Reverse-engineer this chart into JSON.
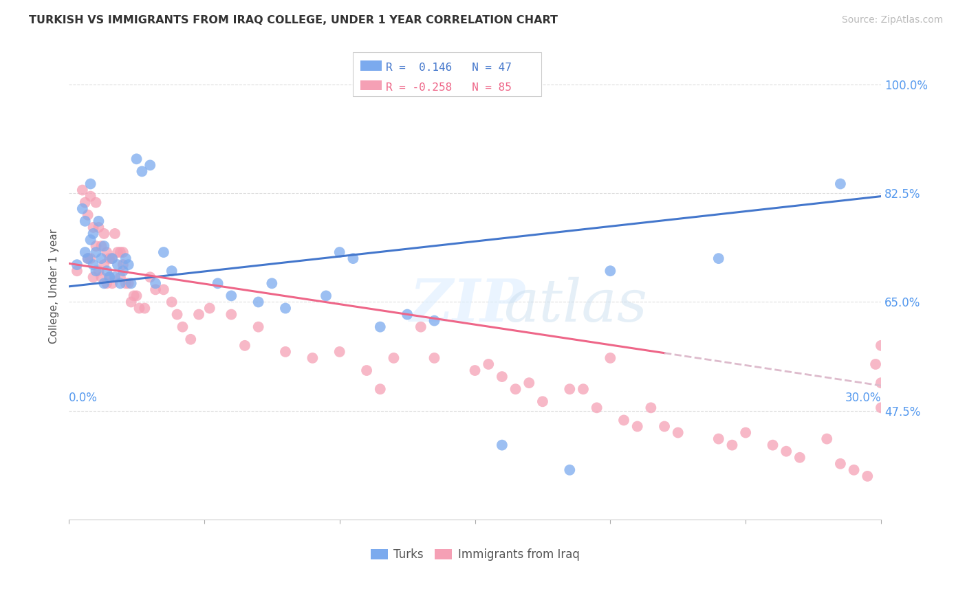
{
  "title": "TURKISH VS IMMIGRANTS FROM IRAQ COLLEGE, UNDER 1 YEAR CORRELATION CHART",
  "source": "Source: ZipAtlas.com",
  "ylabel": "College, Under 1 year",
  "yticks_labels": [
    "100.0%",
    "82.5%",
    "65.0%",
    "47.5%"
  ],
  "ytick_vals": [
    1.0,
    0.825,
    0.65,
    0.475
  ],
  "xlim": [
    0.0,
    0.3
  ],
  "ylim": [
    0.3,
    1.05
  ],
  "turks_R": 0.146,
  "turks_N": 47,
  "iraq_R": -0.258,
  "iraq_N": 85,
  "turks_color": "#7baaee",
  "iraq_color": "#f5a0b5",
  "turks_line_color": "#4477cc",
  "iraq_line_color": "#ee6688",
  "iraq_dash_color": "#ddbbcc",
  "legend_text_blue": "R =  0.146   N = 47",
  "legend_text_pink": "R = -0.258   N = 85",
  "bottom_legend_left": "Turks",
  "bottom_legend_right": "Immigrants from Iraq",
  "turks_scatter_x": [
    0.003,
    0.005,
    0.006,
    0.006,
    0.007,
    0.008,
    0.008,
    0.009,
    0.009,
    0.01,
    0.01,
    0.011,
    0.012,
    0.013,
    0.013,
    0.014,
    0.015,
    0.016,
    0.017,
    0.018,
    0.019,
    0.02,
    0.021,
    0.022,
    0.023,
    0.025,
    0.027,
    0.03,
    0.032,
    0.035,
    0.038,
    0.055,
    0.06,
    0.07,
    0.075,
    0.08,
    0.095,
    0.1,
    0.105,
    0.115,
    0.125,
    0.135,
    0.16,
    0.185,
    0.2,
    0.24,
    0.285
  ],
  "turks_scatter_y": [
    0.71,
    0.8,
    0.73,
    0.78,
    0.72,
    0.75,
    0.84,
    0.71,
    0.76,
    0.7,
    0.73,
    0.78,
    0.72,
    0.74,
    0.68,
    0.7,
    0.69,
    0.72,
    0.69,
    0.71,
    0.68,
    0.7,
    0.72,
    0.71,
    0.68,
    0.88,
    0.86,
    0.87,
    0.68,
    0.73,
    0.7,
    0.68,
    0.66,
    0.65,
    0.68,
    0.64,
    0.66,
    0.73,
    0.72,
    0.61,
    0.63,
    0.62,
    0.42,
    0.38,
    0.7,
    0.72,
    0.84
  ],
  "iraq_scatter_x": [
    0.003,
    0.005,
    0.006,
    0.007,
    0.007,
    0.008,
    0.008,
    0.009,
    0.009,
    0.01,
    0.01,
    0.011,
    0.011,
    0.012,
    0.012,
    0.013,
    0.013,
    0.014,
    0.014,
    0.015,
    0.015,
    0.016,
    0.016,
    0.017,
    0.018,
    0.019,
    0.019,
    0.02,
    0.02,
    0.021,
    0.022,
    0.023,
    0.024,
    0.025,
    0.026,
    0.028,
    0.03,
    0.032,
    0.035,
    0.038,
    0.04,
    0.042,
    0.045,
    0.048,
    0.052,
    0.06,
    0.065,
    0.07,
    0.08,
    0.09,
    0.1,
    0.11,
    0.115,
    0.12,
    0.13,
    0.135,
    0.15,
    0.155,
    0.16,
    0.165,
    0.17,
    0.175,
    0.185,
    0.19,
    0.195,
    0.2,
    0.205,
    0.21,
    0.215,
    0.22,
    0.225,
    0.24,
    0.245,
    0.25,
    0.26,
    0.265,
    0.27,
    0.28,
    0.285,
    0.29,
    0.295,
    0.298,
    0.3,
    0.3,
    0.3
  ],
  "iraq_scatter_y": [
    0.7,
    0.83,
    0.81,
    0.79,
    0.72,
    0.72,
    0.82,
    0.69,
    0.77,
    0.81,
    0.74,
    0.77,
    0.7,
    0.74,
    0.69,
    0.71,
    0.76,
    0.73,
    0.68,
    0.72,
    0.69,
    0.72,
    0.68,
    0.76,
    0.73,
    0.69,
    0.73,
    0.73,
    0.71,
    0.68,
    0.68,
    0.65,
    0.66,
    0.66,
    0.64,
    0.64,
    0.69,
    0.67,
    0.67,
    0.65,
    0.63,
    0.61,
    0.59,
    0.63,
    0.64,
    0.63,
    0.58,
    0.61,
    0.57,
    0.56,
    0.57,
    0.54,
    0.51,
    0.56,
    0.61,
    0.56,
    0.54,
    0.55,
    0.53,
    0.51,
    0.52,
    0.49,
    0.51,
    0.51,
    0.48,
    0.56,
    0.46,
    0.45,
    0.48,
    0.45,
    0.44,
    0.43,
    0.42,
    0.44,
    0.42,
    0.41,
    0.4,
    0.43,
    0.39,
    0.38,
    0.37,
    0.55,
    0.58,
    0.52,
    0.48
  ]
}
